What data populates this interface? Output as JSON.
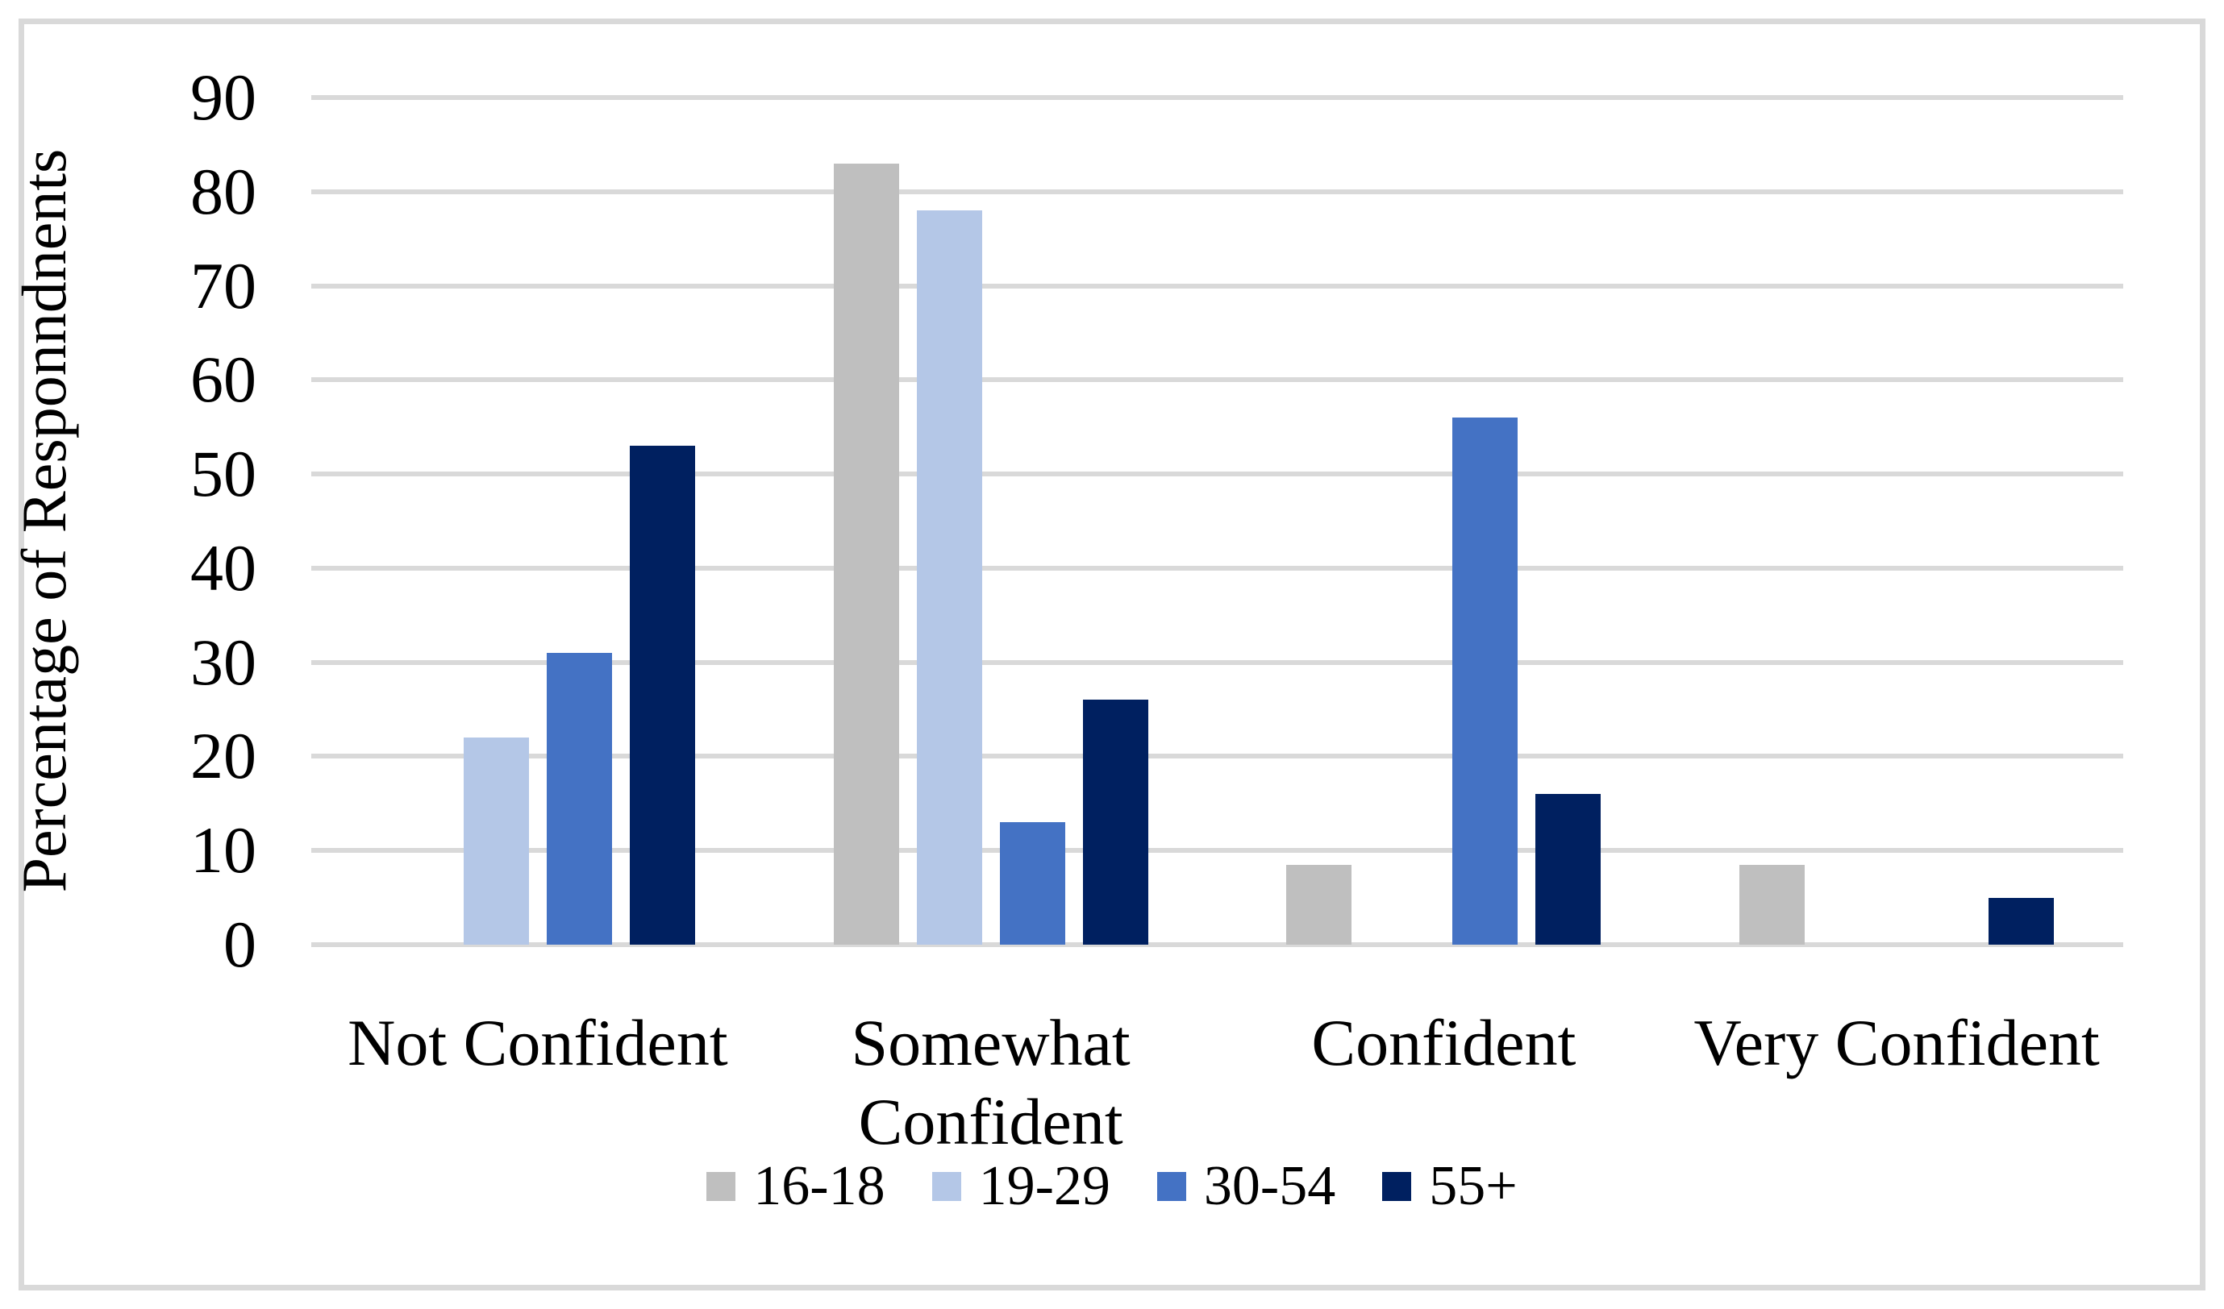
{
  "chart_data": {
    "type": "bar",
    "title": "",
    "categories": [
      "Not Confident",
      "Somewhat Confident",
      "Confident",
      "Very Confident"
    ],
    "series": [
      {
        "name": "16-18",
        "color": "#BFBFBF",
        "values": [
          0,
          83,
          8.5,
          8.5
        ]
      },
      {
        "name": "19-29",
        "color": "#B4C7E7",
        "values": [
          22,
          78,
          0,
          0
        ]
      },
      {
        "name": "30-54",
        "color": "#4472C4",
        "values": [
          31,
          13,
          56,
          0
        ]
      },
      {
        "name": "55+",
        "color": "#002060",
        "values": [
          53,
          26,
          16,
          5
        ]
      }
    ],
    "xlabel": "",
    "ylabel": "Percentage of Responndnents",
    "ylim": [
      0,
      90
    ],
    "yticks": [
      0,
      10,
      20,
      30,
      40,
      50,
      60,
      70,
      80,
      90
    ],
    "grid": "horizontal",
    "gridline_color": "#D9D9D9",
    "legend_position": "bottom",
    "background_color": "#FFFFFF",
    "frame_border_color": "#D9D9D9",
    "text_color": "#000000"
  }
}
